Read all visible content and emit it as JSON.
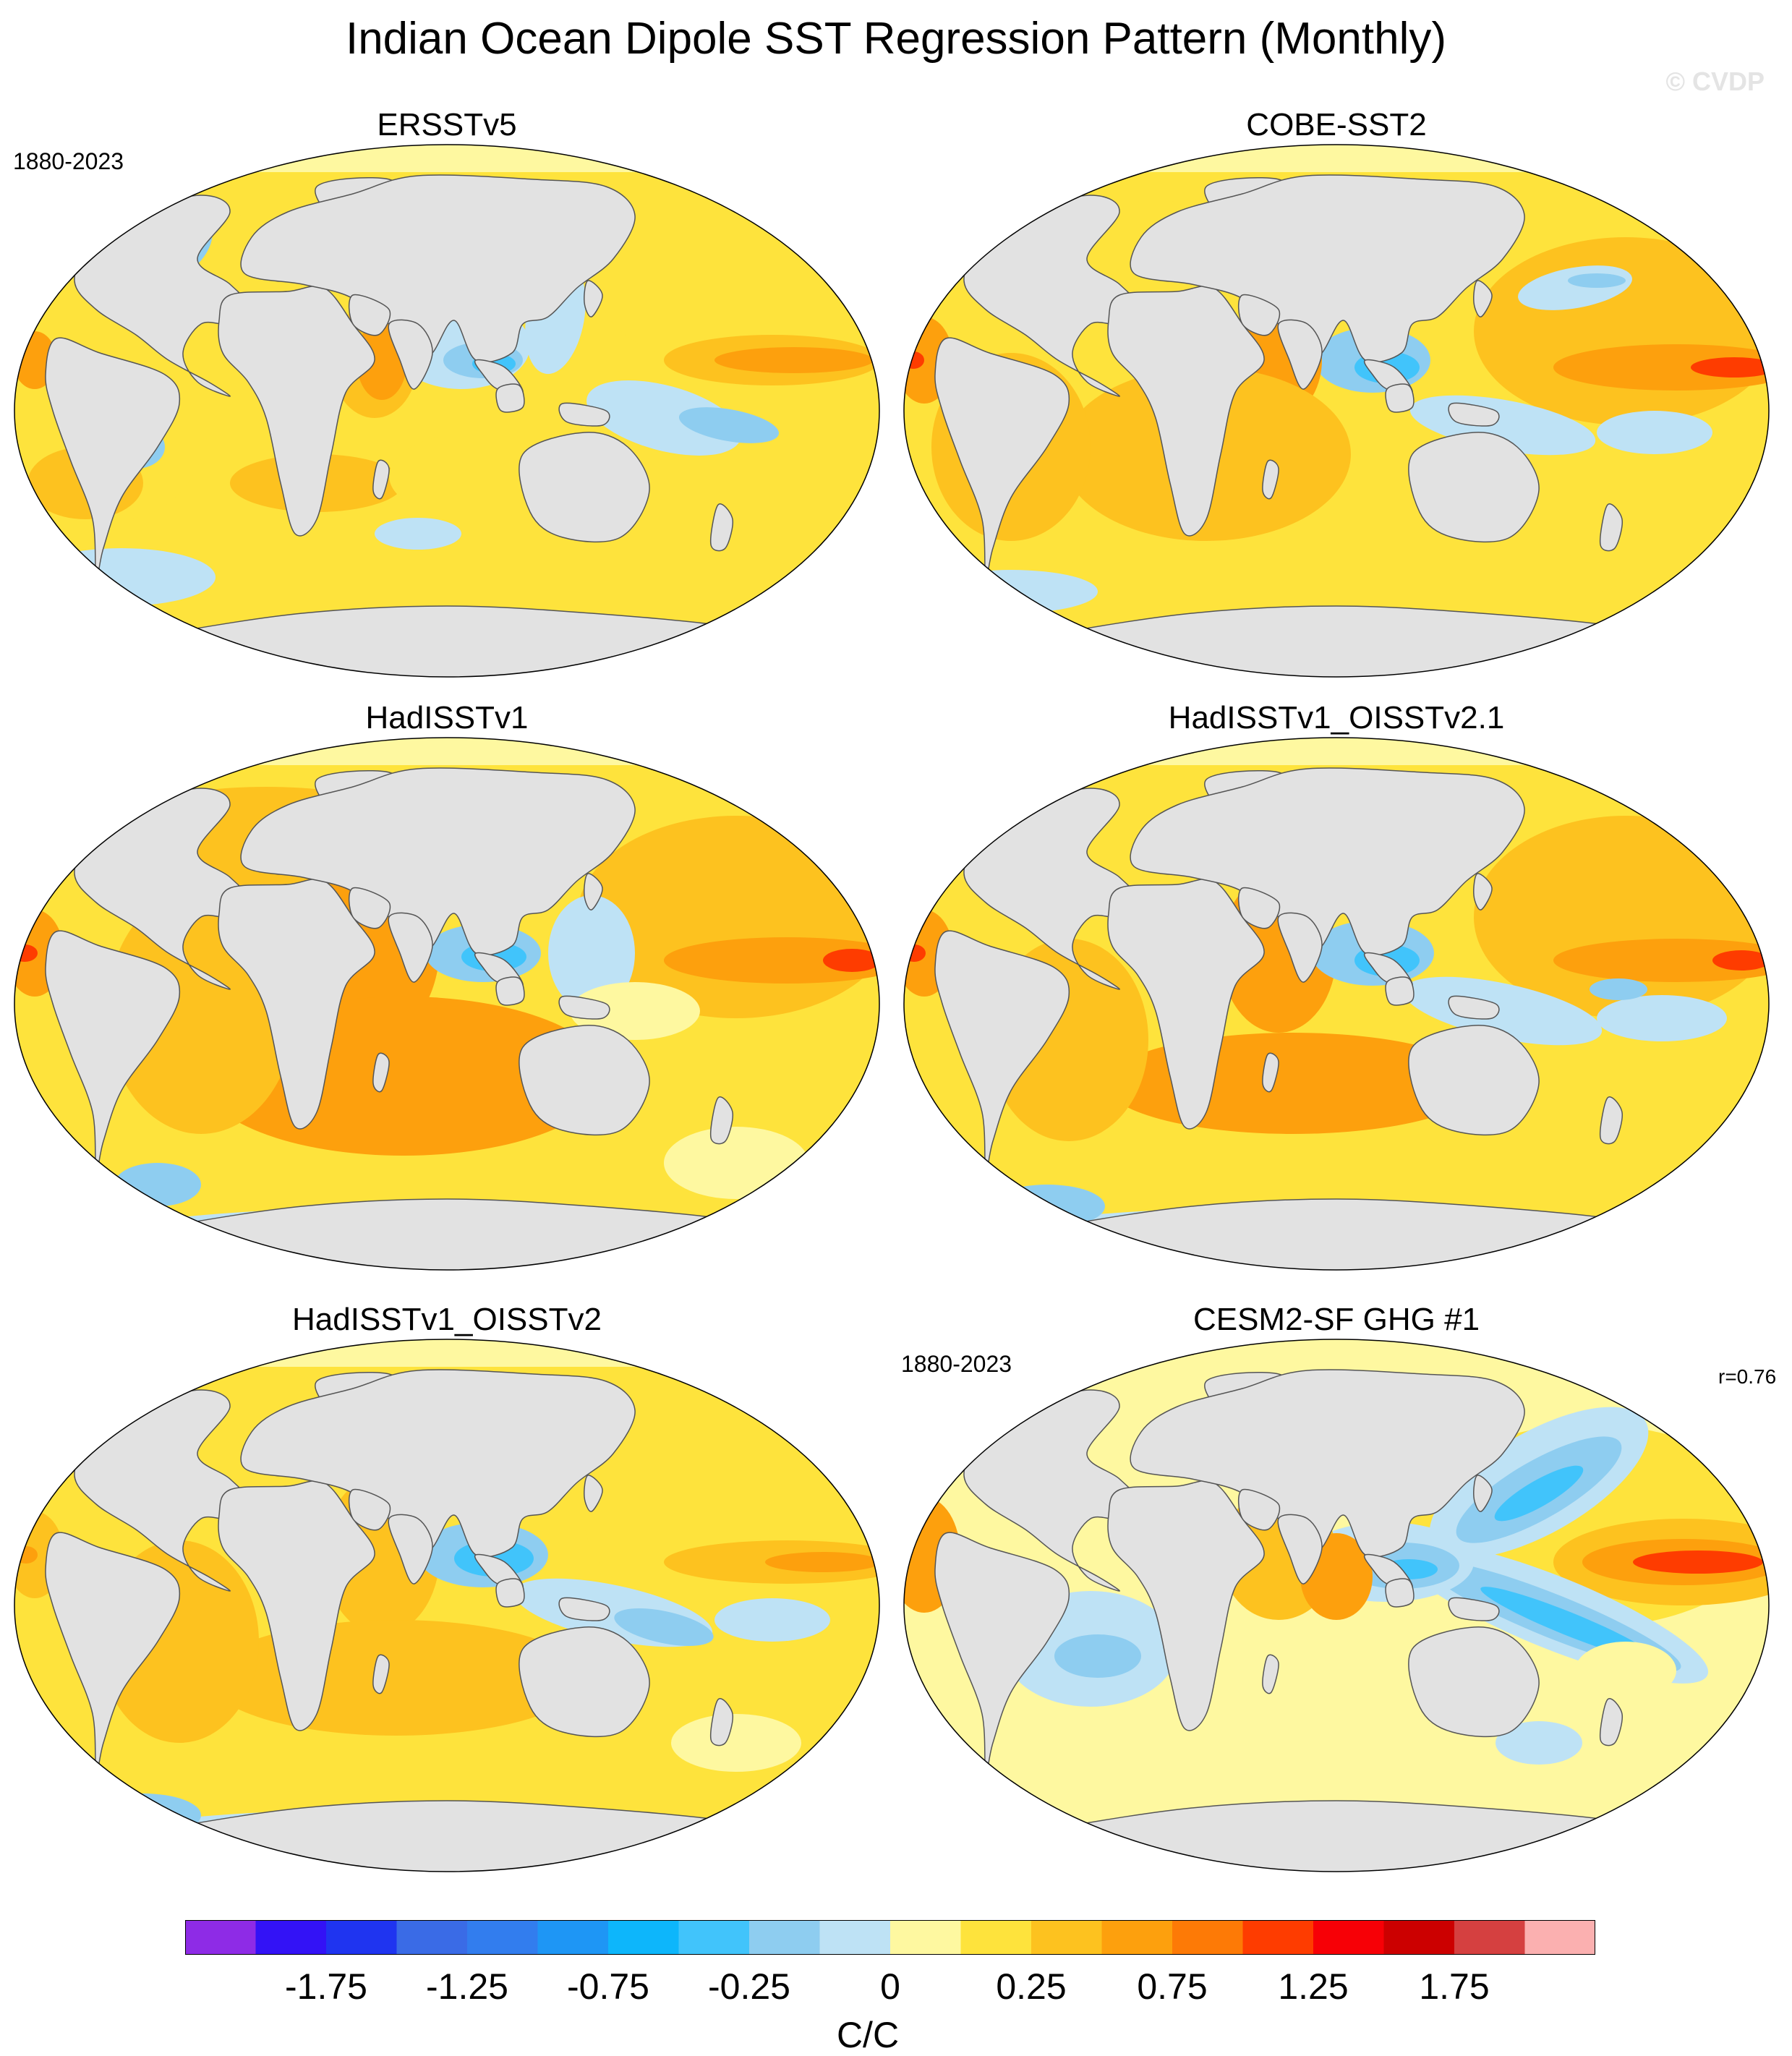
{
  "figure": {
    "title": "Indian Ocean Dipole SST Regression Pattern (Monthly)",
    "watermark": "© CVDP"
  },
  "panels": [
    {
      "title": "ERSSTv5",
      "period": "1880-2023",
      "r": ""
    },
    {
      "title": "COBE-SST2",
      "period": "",
      "r": ""
    },
    {
      "title": "HadISSTv1",
      "period": "",
      "r": ""
    },
    {
      "title": "HadISSTv1_OISSTv2.1",
      "period": "",
      "r": ""
    },
    {
      "title": "HadISSTv1_OISSTv2",
      "period": "",
      "r": ""
    },
    {
      "title": "CESM2-SF GHG #1",
      "period": "1880-2023",
      "r": "r=0.76"
    }
  ],
  "colorbar": {
    "units": "C/C",
    "labels": [
      "-1.75",
      "-1.25",
      "-0.75",
      "-0.25",
      "0",
      "0.25",
      "0.75",
      "1.25",
      "1.75"
    ],
    "colors": [
      "#8e2be6",
      "#3312f6",
      "#1f34f0",
      "#3a6be6",
      "#327dee",
      "#1e96f5",
      "#0db6fb",
      "#41c4fb",
      "#8ecdf0",
      "#bee2f5",
      "#fef8a0",
      "#fee33c",
      "#fdc21f",
      "#fda00d",
      "#fd7a06",
      "#fe3c00",
      "#f70006",
      "#cc0000",
      "#d54040",
      "#fbb0b0"
    ]
  },
  "style": {
    "land": "#e2e2e2",
    "coast": "#555555",
    "yellow": "#fef8a0",
    "gold": "#fee33c",
    "amber": "#fdc21f",
    "orange": "#fda00d",
    "deep_orange": "#fd7a06",
    "red": "#fe3c00",
    "pale_blue": "#bee2f5",
    "light_blue": "#8ecdf0",
    "blue": "#41c4fb"
  }
}
